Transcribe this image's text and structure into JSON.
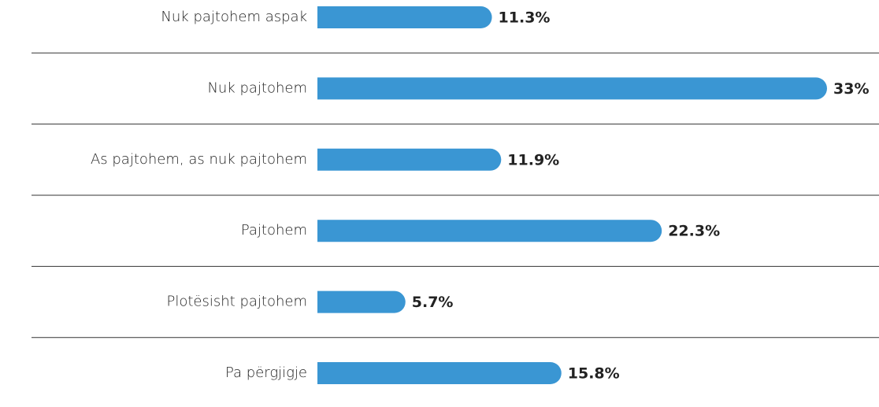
{
  "chart_data": {
    "type": "bar",
    "orientation": "horizontal",
    "categories": [
      "Nuk pajtohem aspak",
      "Nuk pajtohem",
      "As pajtohem, as nuk pajtohem",
      "Pajtohem",
      "Plotësisht pajtohem",
      "Pa përgjigje"
    ],
    "values": [
      11.3,
      33,
      11.9,
      22.3,
      5.7,
      15.8
    ],
    "value_labels": [
      "11.3%",
      "33%",
      "11.9%",
      "22.3%",
      "5.7%",
      "15.8%"
    ],
    "color": "#3a96d3"
  }
}
